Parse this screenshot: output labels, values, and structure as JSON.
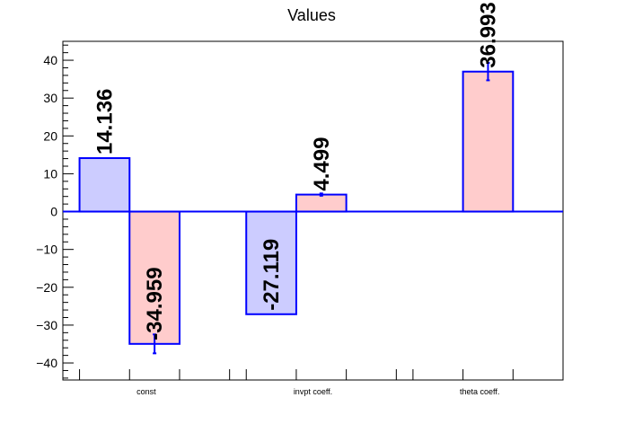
{
  "chart_data": {
    "type": "bar",
    "title": "Values",
    "xlabel": "",
    "ylabel": "",
    "ylim": [
      -44.5,
      45
    ],
    "yticks": [
      -40,
      -30,
      -20,
      -10,
      0,
      10,
      20,
      30,
      40
    ],
    "grid": false,
    "legend": "none",
    "categories": [
      "const",
      "invpt coeff.",
      "theta coeff."
    ],
    "series": [
      {
        "color": "#ccccff",
        "values": [
          14.136,
          -27.119,
          null
        ],
        "labels": [
          "14.136",
          "-27.119",
          ""
        ],
        "errors": [
          0,
          0,
          0
        ]
      },
      {
        "color": "#ffcccc",
        "values": [
          -34.959,
          4.499,
          36.993
        ],
        "labels": [
          "-34.959",
          "4.499",
          "36.993"
        ],
        "errors": [
          2.5,
          0.3,
          2.3
        ]
      }
    ],
    "bar_outline_color": "#0000ff"
  }
}
